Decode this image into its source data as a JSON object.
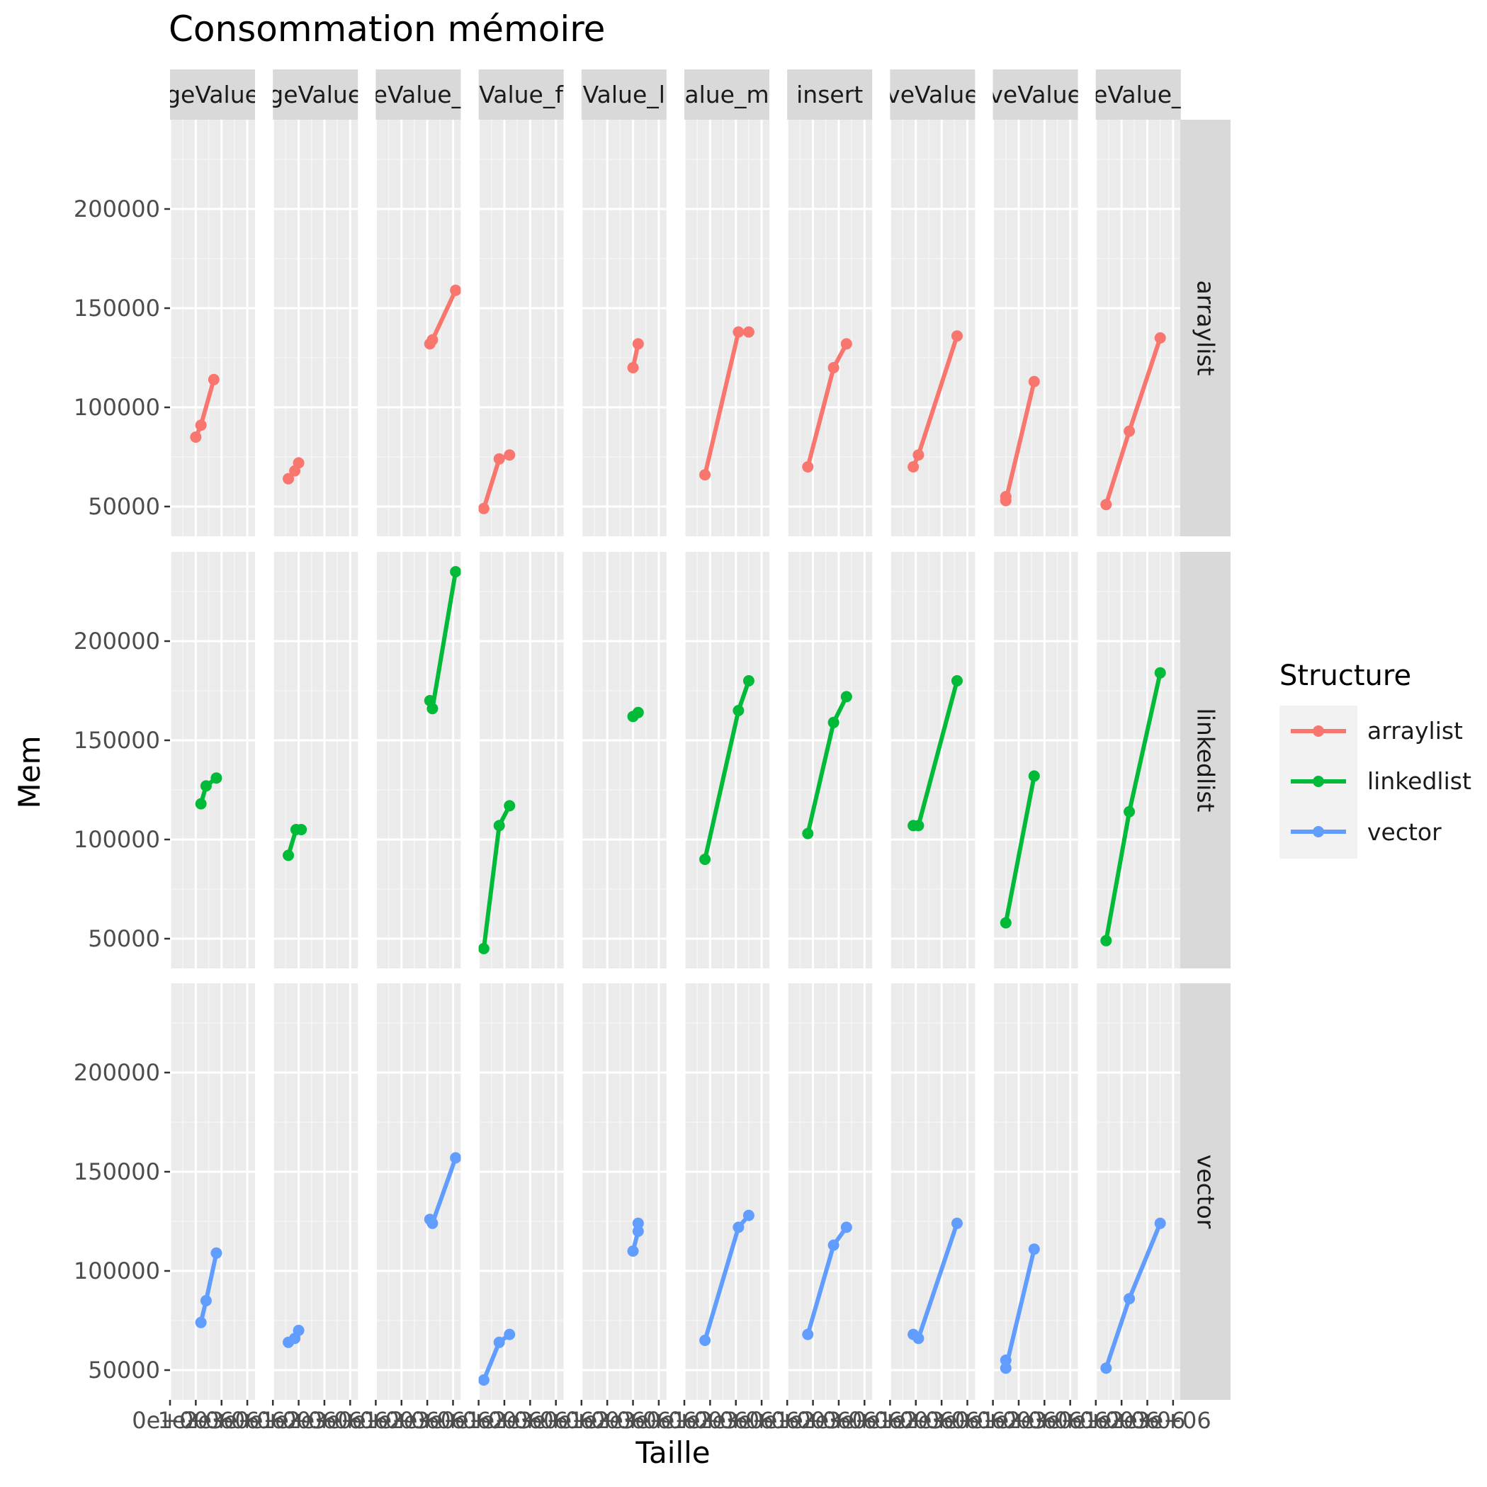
{
  "chart_data": {
    "type": "line",
    "title": "Consommation mémoire",
    "xlabel": "Taille",
    "ylabel": "Mem",
    "ylim": [
      35000,
      245000
    ],
    "yticks": [
      50000,
      100000,
      150000,
      200000
    ],
    "ytick_labels": [
      "50000",
      "100000",
      "150000",
      "200000"
    ],
    "xlim": [
      0,
      3300000
    ],
    "xticks": [
      0,
      1000000,
      2000000,
      3000000
    ],
    "xtick_labels": [
      "0e+00",
      "1e+06",
      "2e+06",
      "3e+06"
    ],
    "grid": true,
    "legend": {
      "title": "Structure",
      "position": "right",
      "entries": [
        "arraylist",
        "linkedlist",
        "vector"
      ]
    },
    "colors": {
      "arraylist": "#F8766D",
      "linkedlist": "#00BA38",
      "vector": "#619CFF"
    },
    "col_strips": [
      "geValue",
      "geValue",
      "eValue_",
      "Value_f",
      "Value_l",
      "alue_m",
      "insert",
      "veValue",
      "veValue",
      "eValue_"
    ],
    "row_strips": [
      "arraylist",
      "linkedlist",
      "vector"
    ],
    "panels": {
      "arraylist": [
        {
          "x": [
            1000000,
            1200000,
            1700000
          ],
          "y": [
            85000,
            91000,
            114000
          ]
        },
        {
          "x": [
            600000,
            850000,
            1000000
          ],
          "y": [
            64000,
            68000,
            72000
          ]
        },
        {
          "x": [
            2100000,
            2200000,
            3100000
          ],
          "y": [
            132000,
            134000,
            159000
          ]
        },
        {
          "x": [
            200000,
            800000,
            1200000
          ],
          "y": [
            49000,
            74000,
            76000
          ]
        },
        {
          "x": [
            2000000,
            2200000
          ],
          "y": [
            120000,
            132000
          ]
        },
        {
          "x": [
            800000,
            2100000,
            2500000
          ],
          "y": [
            66000,
            138000,
            138000
          ]
        },
        {
          "x": [
            800000,
            1800000,
            2300000
          ],
          "y": [
            70000,
            120000,
            132000
          ]
        },
        {
          "x": [
            900000,
            1100000,
            2600000
          ],
          "y": [
            70000,
            76000,
            136000
          ]
        },
        {
          "x": [
            500000,
            500000,
            1600000
          ],
          "y": [
            55000,
            53000,
            113000
          ]
        },
        {
          "x": [
            400000,
            1300000,
            2500000
          ],
          "y": [
            51000,
            88000,
            135000
          ]
        }
      ],
      "linkedlist": [
        {
          "x": [
            1200000,
            1400000,
            1800000
          ],
          "y": [
            118000,
            127000,
            131000
          ]
        },
        {
          "x": [
            600000,
            900000,
            1100000
          ],
          "y": [
            92000,
            105000,
            105000
          ]
        },
        {
          "x": [
            2100000,
            2200000,
            3100000
          ],
          "y": [
            170000,
            166000,
            235000
          ]
        },
        {
          "x": [
            200000,
            800000,
            1200000
          ],
          "y": [
            45000,
            107000,
            117000
          ]
        },
        {
          "x": [
            2000000,
            2200000
          ],
          "y": [
            162000,
            164000
          ]
        },
        {
          "x": [
            800000,
            2100000,
            2500000
          ],
          "y": [
            90000,
            165000,
            180000
          ]
        },
        {
          "x": [
            800000,
            1800000,
            2300000
          ],
          "y": [
            103000,
            159000,
            172000
          ]
        },
        {
          "x": [
            900000,
            1100000,
            2600000
          ],
          "y": [
            107000,
            107000,
            180000
          ]
        },
        {
          "x": [
            500000,
            1600000
          ],
          "y": [
            58000,
            132000
          ]
        },
        {
          "x": [
            400000,
            1300000,
            2500000
          ],
          "y": [
            49000,
            114000,
            184000
          ]
        }
      ],
      "vector": [
        {
          "x": [
            1200000,
            1400000,
            1800000
          ],
          "y": [
            74000,
            85000,
            109000
          ]
        },
        {
          "x": [
            600000,
            850000,
            1000000
          ],
          "y": [
            64000,
            66000,
            70000
          ]
        },
        {
          "x": [
            2100000,
            2200000,
            3100000
          ],
          "y": [
            126000,
            124000,
            157000
          ]
        },
        {
          "x": [
            200000,
            800000,
            1200000
          ],
          "y": [
            45000,
            64000,
            68000
          ]
        },
        {
          "x": [
            2000000,
            2200000,
            2200000
          ],
          "y": [
            110000,
            120000,
            124000
          ]
        },
        {
          "x": [
            800000,
            2100000,
            2500000
          ],
          "y": [
            65000,
            122000,
            128000
          ]
        },
        {
          "x": [
            800000,
            1800000,
            2300000
          ],
          "y": [
            68000,
            113000,
            122000
          ]
        },
        {
          "x": [
            900000,
            1100000,
            2600000
          ],
          "y": [
            68000,
            66000,
            124000
          ]
        },
        {
          "x": [
            500000,
            500000,
            1600000
          ],
          "y": [
            55000,
            51000,
            111000
          ]
        },
        {
          "x": [
            400000,
            1300000,
            2500000
          ],
          "y": [
            51000,
            86000,
            124000
          ]
        }
      ]
    }
  }
}
